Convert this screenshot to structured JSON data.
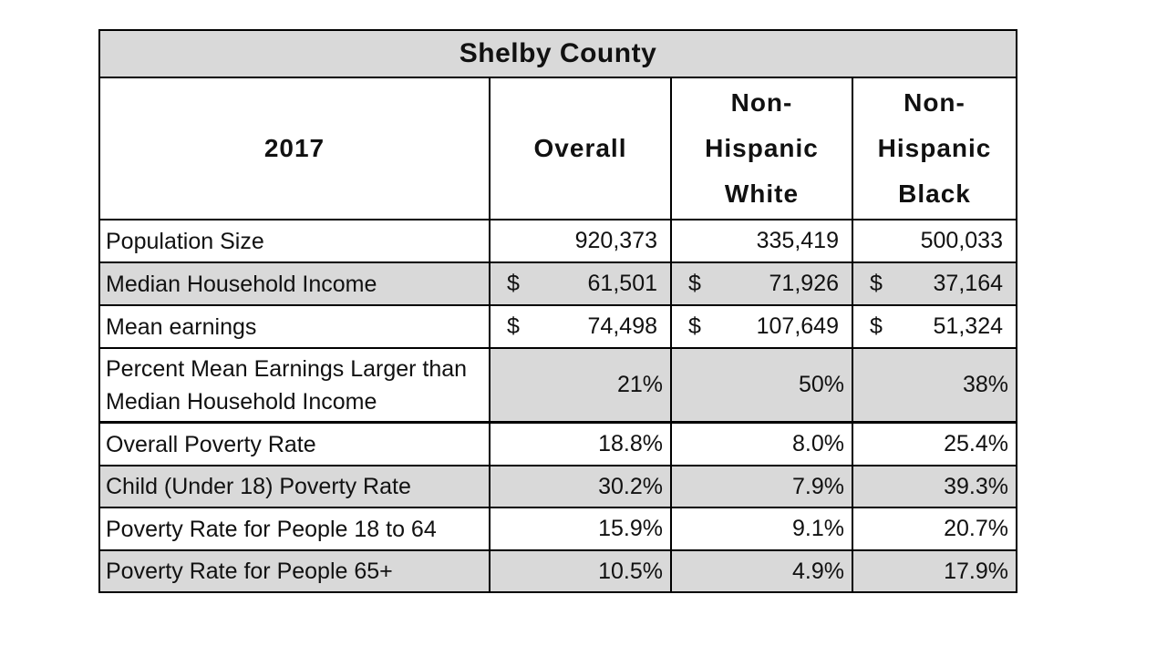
{
  "table": {
    "title": "Shelby County",
    "headers": [
      "2017",
      "Overall",
      "Non-\nHispanic\nWhite",
      "Non-\nHispanic\nBlack"
    ],
    "rows": [
      {
        "label": "Population Size",
        "currency": "",
        "values": [
          "920,373",
          "335,419",
          "500,033"
        ]
      },
      {
        "label": "Median Household Income",
        "currency": "$",
        "values": [
          "61,501",
          "71,926",
          "37,164"
        ]
      },
      {
        "label": "Mean earnings",
        "currency": "$",
        "values": [
          "74,498",
          "107,649",
          "51,324"
        ]
      },
      {
        "label": "Percent Mean Earnings Larger than Median Household Income",
        "currency": "",
        "values": [
          "21%",
          "50%",
          "38%"
        ]
      },
      {
        "label": "Overall Poverty Rate",
        "currency": "",
        "values": [
          "18.8%",
          "8.0%",
          "25.4%"
        ]
      },
      {
        "label": "Child (Under 18) Poverty Rate",
        "currency": "",
        "values": [
          "30.2%",
          "7.9%",
          "39.3%"
        ]
      },
      {
        "label": "Poverty Rate for People 18 to 64",
        "currency": "",
        "values": [
          "15.9%",
          "9.1%",
          "20.7%"
        ]
      },
      {
        "label": "Poverty Rate for People 65+",
        "currency": "",
        "values": [
          "10.5%",
          "4.9%",
          "17.9%"
        ]
      }
    ]
  }
}
